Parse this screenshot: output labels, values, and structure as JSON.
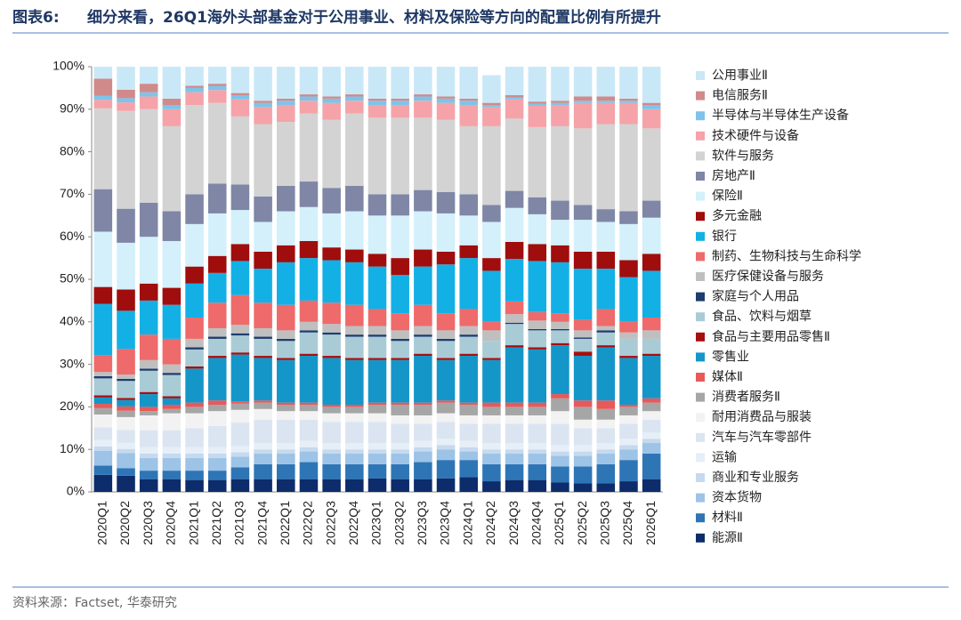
{
  "chart_data": {
    "type": "stacked_bar",
    "figure_label": "图表6:",
    "title": "细分来看，26Q1海外头部基金对于公用事业、材料及保险等方向的配置比例有所提升",
    "source": "资料来源：Factset, 华泰研究",
    "categories": [
      "2020Q1",
      "2020Q2",
      "2020Q3",
      "2020Q4",
      "2021Q1",
      "2021Q2",
      "2021Q3",
      "2021Q4",
      "2022Q1",
      "2022Q2",
      "2022Q3",
      "2022Q4",
      "2023Q1",
      "2023Q2",
      "2023Q3",
      "2023Q4",
      "2024Q1",
      "2024Q2",
      "2024Q3",
      "2024Q4",
      "2025Q1",
      "2025Q2",
      "2025Q3",
      "2025Q4",
      "2026Q1"
    ],
    "ylim": [
      0,
      100
    ],
    "yticks": [
      {
        "value": 0,
        "label": "0%"
      },
      {
        "value": 10,
        "label": "10%"
      },
      {
        "value": 20,
        "label": "20%"
      },
      {
        "value": 30,
        "label": "30%"
      },
      {
        "value": 40,
        "label": "40%"
      },
      {
        "value": 50,
        "label": "50%"
      },
      {
        "value": 60,
        "label": "60%"
      },
      {
        "value": 70,
        "label": "70%"
      },
      {
        "value": 80,
        "label": "80%"
      },
      {
        "value": 90,
        "label": "90%"
      },
      {
        "value": 100,
        "label": "100%"
      }
    ],
    "series": [
      {
        "name": "能源Ⅱ",
        "color": "#0d2c6b",
        "values": [
          4,
          3.8,
          3,
          3,
          2.8,
          2.8,
          3,
          3,
          3,
          3,
          3,
          3,
          3.2,
          3,
          3,
          3.2,
          3.5,
          2.5,
          2.8,
          2.8,
          2.2,
          2,
          2,
          2.5,
          3
        ]
      },
      {
        "name": "材料Ⅱ",
        "color": "#2e75b6",
        "values": [
          2.2,
          1.8,
          2,
          2,
          2.2,
          2.2,
          2.8,
          3.5,
          3.5,
          4,
          3.5,
          3.5,
          3.3,
          3.5,
          4,
          4.3,
          4,
          4,
          3.7,
          3.7,
          3.8,
          4,
          4.5,
          5,
          6
        ]
      },
      {
        "name": "资本货物",
        "color": "#9dc3e6",
        "values": [
          3.5,
          3.5,
          3,
          3,
          3,
          3,
          2.5,
          2.5,
          2.5,
          2.5,
          2.5,
          2.5,
          2.5,
          2.5,
          2.5,
          2.5,
          2,
          2.5,
          2.5,
          2.5,
          2.5,
          2.5,
          2.5,
          2.5,
          2.5
        ]
      },
      {
        "name": "商业和专业服务",
        "color": "#c6d9ee",
        "values": [
          1,
          1,
          1,
          1,
          1,
          1,
          1,
          1,
          1,
          1,
          1,
          1,
          1,
          1,
          1,
          1,
          1,
          1,
          1,
          1,
          1,
          1,
          1,
          1,
          1
        ]
      },
      {
        "name": "运输",
        "color": "#e6eef7",
        "values": [
          1.5,
          1.5,
          1.5,
          1.5,
          1.5,
          1.5,
          1.5,
          1.5,
          1.5,
          1.5,
          1.5,
          1.5,
          1.5,
          1.5,
          1.5,
          1.5,
          1.5,
          1.5,
          1.5,
          1.5,
          1.5,
          1.5,
          1.5,
          1.5,
          1.5
        ]
      },
      {
        "name": "汽车与汽车零部件",
        "color": "#dbe5f1",
        "values": [
          3,
          3,
          4,
          4,
          4.5,
          5,
          5.5,
          5.5,
          5.5,
          5,
          5,
          5,
          5,
          4.5,
          4,
          4,
          4,
          4.5,
          4.5,
          4.5,
          5,
          4,
          3.5,
          3.5,
          3
        ]
      },
      {
        "name": "耐用消费品与服装",
        "color": "#f2f2f2",
        "values": [
          3,
          3,
          3.5,
          4,
          3.5,
          3.5,
          3,
          2.5,
          2,
          2,
          2,
          2,
          2,
          2,
          2,
          2,
          2,
          2,
          2,
          2,
          3,
          2,
          2,
          2,
          2
        ]
      },
      {
        "name": "消费者服务Ⅱ",
        "color": "#a6a6a6",
        "values": [
          1.5,
          1.5,
          1,
          1,
          1.5,
          1.5,
          1.5,
          1.5,
          1.5,
          1.5,
          1.5,
          1.5,
          2,
          2.5,
          2.5,
          2.5,
          2.5,
          2,
          2,
          2,
          3,
          3,
          2.5,
          2,
          2
        ]
      },
      {
        "name": "媒体Ⅱ",
        "color": "#e8595a",
        "values": [
          1,
          1,
          1,
          1,
          1,
          1,
          0.5,
          0.5,
          0.5,
          0.5,
          0.5,
          0.5,
          0.5,
          0.5,
          0.5,
          0.5,
          0.5,
          1,
          1,
          1,
          1,
          1.5,
          2,
          0.5,
          1
        ]
      },
      {
        "name": "零售业",
        "color": "#1596c9",
        "values": [
          1.5,
          1.5,
          3,
          1.5,
          8,
          10,
          11,
          10,
          10,
          11,
          11,
          10.5,
          10,
          10,
          11,
          9.5,
          11,
          10,
          13,
          12.5,
          11.5,
          10.5,
          12.5,
          11,
          10
        ]
      },
      {
        "name": "食品与主要用品零售Ⅱ",
        "color": "#a50f0f",
        "values": [
          0.5,
          0.5,
          0.5,
          0.5,
          0.5,
          0.5,
          0.5,
          0.5,
          0.5,
          0.5,
          0.5,
          0.5,
          0.5,
          0.5,
          0.5,
          0.5,
          0.5,
          0.5,
          0.5,
          0.5,
          0.5,
          1,
          0.5,
          0.5,
          0.5
        ]
      },
      {
        "name": "食品、饮料与烟草",
        "color": "#a9cbd6",
        "values": [
          4,
          4,
          5,
          5,
          4,
          4,
          4,
          4,
          4,
          5,
          5,
          5,
          5,
          4,
          4,
          4,
          4,
          4,
          5,
          4,
          3,
          3,
          3,
          4,
          3.5
        ]
      },
      {
        "name": "家庭与个人用品",
        "color": "#1d3d6e",
        "values": [
          0.5,
          0.5,
          0.5,
          0.5,
          0.5,
          0.5,
          0.5,
          0.5,
          0.5,
          0.5,
          0.5,
          0.5,
          0.5,
          0.5,
          0.5,
          0.5,
          0.5,
          0,
          0.3,
          0.3,
          0.3,
          0.3,
          0.5,
          0,
          0
        ]
      },
      {
        "name": "医疗保健设备与服务",
        "color": "#bfbfbf",
        "values": [
          1,
          1,
          2,
          2,
          2,
          2,
          2,
          2,
          2,
          2,
          2,
          2,
          2,
          2,
          2,
          2,
          2,
          2.5,
          2,
          2,
          1.7,
          1.7,
          1,
          1.5,
          2
        ]
      },
      {
        "name": "制药、生物科技与生命科学",
        "color": "#ef6a6a",
        "values": [
          4,
          6,
          6,
          6,
          5,
          6,
          7,
          6,
          6,
          5,
          5,
          5,
          4,
          4,
          5,
          4,
          4,
          2,
          3,
          2,
          2,
          2.5,
          4,
          2.5,
          3
        ]
      },
      {
        "name": "银行",
        "color": "#13b0e6",
        "values": [
          12,
          9,
          8,
          8,
          8,
          7,
          8,
          8,
          10,
          10,
          10,
          10,
          10,
          9,
          9,
          11.5,
          12,
          12,
          10,
          12,
          12,
          12,
          9.5,
          10.5,
          11
        ]
      },
      {
        "name": "多元金融",
        "color": "#a00d0d",
        "values": [
          4,
          5,
          4,
          4,
          4,
          4,
          4,
          4,
          4,
          4,
          3,
          3,
          3,
          4,
          4,
          3,
          3,
          3,
          4,
          4,
          4,
          4,
          4,
          4,
          4
        ]
      },
      {
        "name": "保险Ⅱ",
        "color": "#d3f0fb",
        "values": [
          13,
          11,
          11,
          11,
          10,
          10,
          8,
          7,
          8,
          8,
          8,
          9,
          9,
          10,
          9,
          9,
          7,
          8.5,
          8,
          7,
          6,
          7.5,
          7,
          8.5,
          8.5
        ]
      },
      {
        "name": "房地产Ⅱ",
        "color": "#7f86a6",
        "values": [
          10,
          8,
          8,
          7,
          7,
          7,
          6,
          6,
          6,
          6,
          6,
          6,
          5,
          5,
          5,
          5,
          5,
          4,
          4,
          4,
          4.5,
          3.5,
          3,
          3,
          4
        ]
      },
      {
        "name": "软件与服务",
        "color": "#d3d3d3",
        "values": [
          19,
          23,
          22,
          20,
          21,
          19,
          16,
          17,
          15,
          16,
          16,
          17,
          18,
          18,
          17,
          17,
          16,
          18.5,
          17,
          16.5,
          17.5,
          18,
          20,
          20.5,
          17
        ]
      },
      {
        "name": "技术硬件与设备",
        "color": "#f5a3a8",
        "values": [
          2,
          2,
          3,
          4,
          3,
          3,
          4,
          4,
          4,
          3,
          4,
          3,
          3,
          3,
          4,
          4,
          5,
          4.5,
          4.5,
          5,
          5,
          6,
          5,
          5,
          4.5
        ]
      },
      {
        "name": "半导体与半导体生产设备",
        "color": "#7fc3ea",
        "values": [
          1,
          1,
          1,
          1,
          1,
          1,
          1,
          1,
          1,
          1,
          1,
          1,
          1,
          1,
          1,
          1,
          1,
          0.5,
          0.5,
          0.5,
          0.5,
          0.5,
          0.5,
          0.5,
          1
        ]
      },
      {
        "name": "电信服务Ⅱ",
        "color": "#d08a8a",
        "values": [
          4,
          2,
          2,
          1.5,
          0.5,
          0.5,
          0.5,
          0.5,
          0.5,
          0.5,
          0.5,
          0.5,
          0.5,
          0.5,
          0.5,
          0.5,
          0.5,
          0.5,
          0.5,
          0.5,
          0.5,
          1,
          1,
          0.5,
          0.5
        ]
      },
      {
        "name": "公用事业Ⅱ",
        "color": "#c9e8f7",
        "values": [
          2.8,
          5.4,
          4,
          7.5,
          4.5,
          4,
          6.2,
          8,
          7.5,
          6.5,
          7,
          6.5,
          7.5,
          7.5,
          6.5,
          7,
          7.5,
          6.5,
          6.7,
          8.2,
          8,
          7,
          7,
          7.5,
          8.5
        ]
      }
    ]
  }
}
